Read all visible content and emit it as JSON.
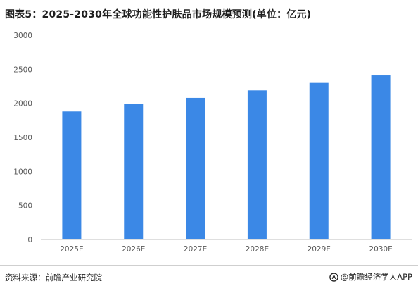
{
  "title": "图表5：2025-2030年全球功能性护肤品市场规模预测(单位：亿元)",
  "footer": {
    "source": "资料来源：前瞻产业研究院",
    "brand": "@前瞻经济学人APP"
  },
  "colors": {
    "bar": "#3b88e6",
    "axis": "#bfbfbf",
    "tick_text": "#595959"
  },
  "chart_data": {
    "type": "bar",
    "title": "图表5：2025-2030年全球功能性护肤品市场规模预测(单位：亿元)",
    "categories": [
      "2025E",
      "2026E",
      "2027E",
      "2028E",
      "2029E",
      "2030E"
    ],
    "values": [
      1880,
      1990,
      2080,
      2190,
      2300,
      2410
    ],
    "ylim": [
      0,
      3000
    ],
    "yticks": [
      0,
      500,
      1000,
      1500,
      2000,
      2500,
      3000
    ],
    "xlabel": "",
    "ylabel": "",
    "grid": false,
    "legend": "none"
  }
}
